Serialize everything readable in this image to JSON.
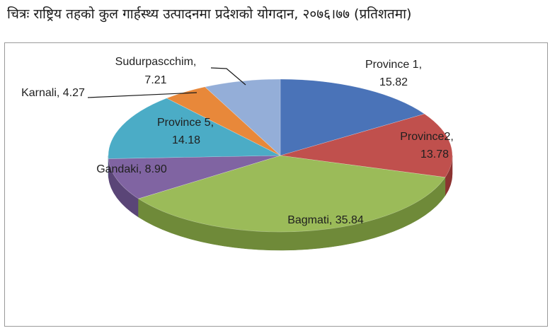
{
  "title": "चित्रः राष्ट्रिय तहको कुल गार्हस्थ्य उत्पादनमा प्रदेशको योगदान, २०७६।७७ (प्रतिशतमा)",
  "chart_data": {
    "type": "pie",
    "title": "चित्रः राष्ट्रिय तहको कुल गार्हस्थ्य उत्पादनमा प्रदेशको योगदान, २०७६।७७ (प्रतिशतमा)",
    "slices": [
      {
        "label": "Province 1",
        "value": 15.82,
        "color": "#4a73b8",
        "side": "#2e4f88"
      },
      {
        "label": "Province2",
        "value": 13.78,
        "color": "#c0504d",
        "side": "#8c3331"
      },
      {
        "label": "Bagmati",
        "value": 35.84,
        "color": "#9bbb59",
        "side": "#6f8a39"
      },
      {
        "label": "Gandaki",
        "value": 8.9,
        "color": "#8064a2",
        "side": "#5a4577"
      },
      {
        "label": "Province 5",
        "value": 14.18,
        "color": "#4bacc6",
        "side": "#2f7f96"
      },
      {
        "label": "Karnali",
        "value": 4.27,
        "color": "#e8883a",
        "side": "#ad5f1f"
      },
      {
        "label": "Sudurpascchim",
        "value": 7.21,
        "color": "#94aed8",
        "side": "#6c84ad"
      }
    ],
    "data_labels": [
      {
        "name": "Province 1,",
        "value": "15.82"
      },
      {
        "name": "Province2,",
        "value": "13.78"
      },
      {
        "name": "Bagmati, 35.84",
        "value": ""
      },
      {
        "name": "Gandaki, 8.90",
        "value": ""
      },
      {
        "name": "Province 5,",
        "value": "14.18"
      },
      {
        "name": "Karnali, 4.27",
        "value": ""
      },
      {
        "name": "Sudurpascchim,",
        "value": "7.21"
      }
    ],
    "legend": "none",
    "three_d": true
  }
}
